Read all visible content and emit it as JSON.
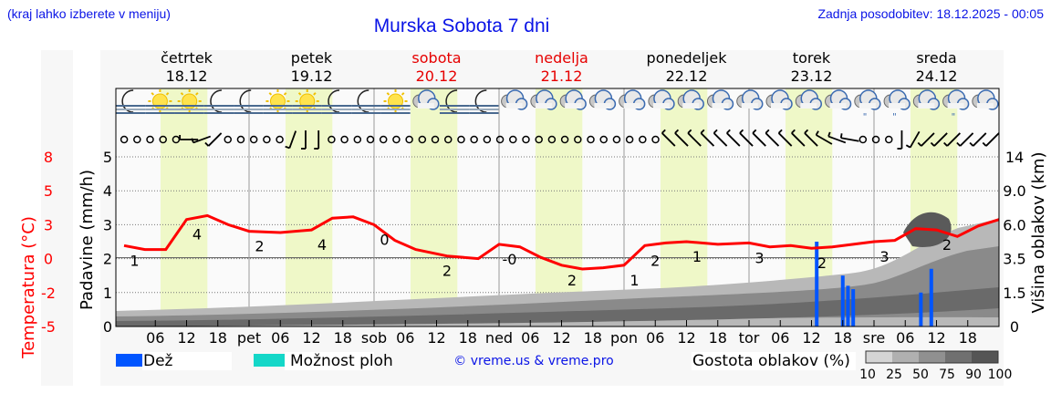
{
  "header": {
    "hint": "(kraj lahko izberete v meniju)",
    "title": "Murska Sobota 7 dni",
    "updated": "Zadnja posodobitev: 18.12.2025 - 00:05"
  },
  "days": [
    {
      "name": "četrtek",
      "date": "18.12",
      "weekend": false
    },
    {
      "name": "petek",
      "date": "19.12",
      "weekend": false
    },
    {
      "name": "sobota",
      "date": "20.12",
      "weekend": true
    },
    {
      "name": "nedelja",
      "date": "21.12",
      "weekend": true
    },
    {
      "name": "ponedeljek",
      "date": "22.12",
      "weekend": false
    },
    {
      "name": "torek",
      "date": "23.12",
      "weekend": false
    },
    {
      "name": "sreda",
      "date": "24.12",
      "weekend": false
    }
  ],
  "weather_icons": [
    "moon-fog",
    "sun-fog",
    "sun-fog",
    "moon-fog",
    "moon-fog",
    "sun-fog",
    "sun-fog",
    "moon-fog",
    "moon-fog",
    "sun-fog",
    "cloudy",
    "moon-fog",
    "moon-fog",
    "cloudy",
    "cloudy",
    "cloudy",
    "cloudy",
    "cloudy",
    "cloudy",
    "cloudy",
    "cloudy",
    "cloudy",
    "cloudy",
    "cloudy",
    "cloudy",
    "cloud-drizzle",
    "cloud-drizzle",
    "cloudy",
    "cloud-drizzle",
    "cloudy"
  ],
  "wind": {
    "calm_symbol": "calm-circle",
    "direction_deg": [
      null,
      null,
      null,
      null,
      null,
      270,
      250,
      225,
      null,
      null,
      null,
      null,
      null,
      200,
      180,
      180,
      null,
      null,
      null,
      null,
      null,
      null,
      null,
      null,
      null,
      null,
      null,
      null,
      null,
      null,
      null,
      null,
      null,
      null,
      null,
      null,
      null,
      null,
      null,
      null,
      null,
      null,
      315,
      315,
      315,
      315,
      315,
      315,
      315,
      315,
      315,
      315,
      315,
      315,
      300,
      290,
      280,
      null,
      null,
      null,
      180,
      210,
      225,
      225,
      225,
      225,
      225,
      225
    ]
  },
  "axes": {
    "left_temp_label": "Temperatura (°C)",
    "left_temp_ticks": [
      "8",
      "5",
      "3",
      "0",
      "-2",
      "-5"
    ],
    "left_precip_label": "Padavine (mm/h)",
    "left_precip_ticks": [
      "5",
      "4",
      "3",
      "2",
      "1",
      "0"
    ],
    "right_label": "Višina oblakov (km)",
    "right_ticks": [
      "14",
      "9.0",
      "6.0",
      "3.5",
      "1.5",
      "0"
    ],
    "x_ticks": [
      "06",
      "12",
      "18",
      "pet",
      "06",
      "12",
      "18",
      "sob",
      "06",
      "12",
      "18",
      "ned",
      "06",
      "12",
      "18",
      "pon",
      "06",
      "12",
      "18",
      "tor",
      "06",
      "12",
      "18",
      "sre",
      "06",
      "12",
      "18"
    ]
  },
  "legend": {
    "rain_label": "Dež",
    "rain_color": "#0055ff",
    "storm_label": "Možnost ploh",
    "storm_color": "#14d7c8",
    "copyright": "© vreme.us & vreme.pro",
    "cloud_density_label": "Gostota oblakov (%)",
    "cloud_density_ticks": [
      "10",
      "25",
      "50",
      "75",
      "90",
      "100"
    ],
    "cloud_density_colors": [
      "#d4d4d4",
      "#b0b0b0",
      "#909090",
      "#707070",
      "#555555"
    ]
  },
  "colors": {
    "temp_line": "#ff0000",
    "weekend_text": "#e60000",
    "daylight_band": "#eff8c8",
    "title_blue": "#0a14e6"
  },
  "chart_data": {
    "type": "line",
    "title": "Murska Sobota 7 dni",
    "xlabel": "",
    "ylabel": "Temperatura (°C)",
    "ylim": [
      -5,
      8
    ],
    "x_range_hours": [
      0,
      168
    ],
    "series": [
      {
        "name": "Temperatura (°C)",
        "x_hours": [
          0,
          4,
          8,
          12,
          16,
          20,
          24,
          30,
          36,
          40,
          44,
          48,
          52,
          56,
          62,
          68,
          72,
          76,
          80,
          84,
          88,
          92,
          96,
          100,
          104,
          108,
          114,
          120,
          124,
          128,
          132,
          136,
          140,
          144,
          148,
          152,
          156,
          160,
          164,
          168
        ],
        "values": [
          1.2,
          0.9,
          0.9,
          3.2,
          3.5,
          2.8,
          2.3,
          2.2,
          2.4,
          3.3,
          3.4,
          2.8,
          1.6,
          0.9,
          0.4,
          0.2,
          1.3,
          1.1,
          0.3,
          -0.3,
          -0.6,
          -0.5,
          -0.3,
          1.2,
          1.4,
          1.5,
          1.3,
          1.4,
          1.1,
          1.2,
          1.0,
          1.1,
          1.3,
          1.5,
          1.6,
          2.5,
          2.4,
          1.9,
          2.7,
          3.2
        ]
      },
      {
        "name": "Dež (mm/h)",
        "x_hours": [
          133,
          138,
          139,
          140,
          141,
          153,
          155
        ],
        "values": [
          2.5,
          1.5,
          1.2,
          1.1,
          0,
          1.0,
          1.7
        ]
      }
    ],
    "point_labels": [
      {
        "x_hours": 2,
        "text": "1"
      },
      {
        "x_hours": 14,
        "text": "4"
      },
      {
        "x_hours": 26,
        "text": "2"
      },
      {
        "x_hours": 38,
        "text": "4"
      },
      {
        "x_hours": 50,
        "text": "0"
      },
      {
        "x_hours": 62,
        "text": "2"
      },
      {
        "x_hours": 74,
        "text": "-0"
      },
      {
        "x_hours": 86,
        "text": "2"
      },
      {
        "x_hours": 98,
        "text": "1"
      },
      {
        "x_hours": 102,
        "text": "2"
      },
      {
        "x_hours": 110,
        "text": "1"
      },
      {
        "x_hours": 122,
        "text": "3"
      },
      {
        "x_hours": 134,
        "text": "2"
      },
      {
        "x_hours": 146,
        "text": "3"
      },
      {
        "x_hours": 158,
        "text": "2"
      }
    ],
    "legend": [
      "Dež",
      "Možnost ploh",
      "Gostota oblakov (%)"
    ],
    "grid": true
  }
}
